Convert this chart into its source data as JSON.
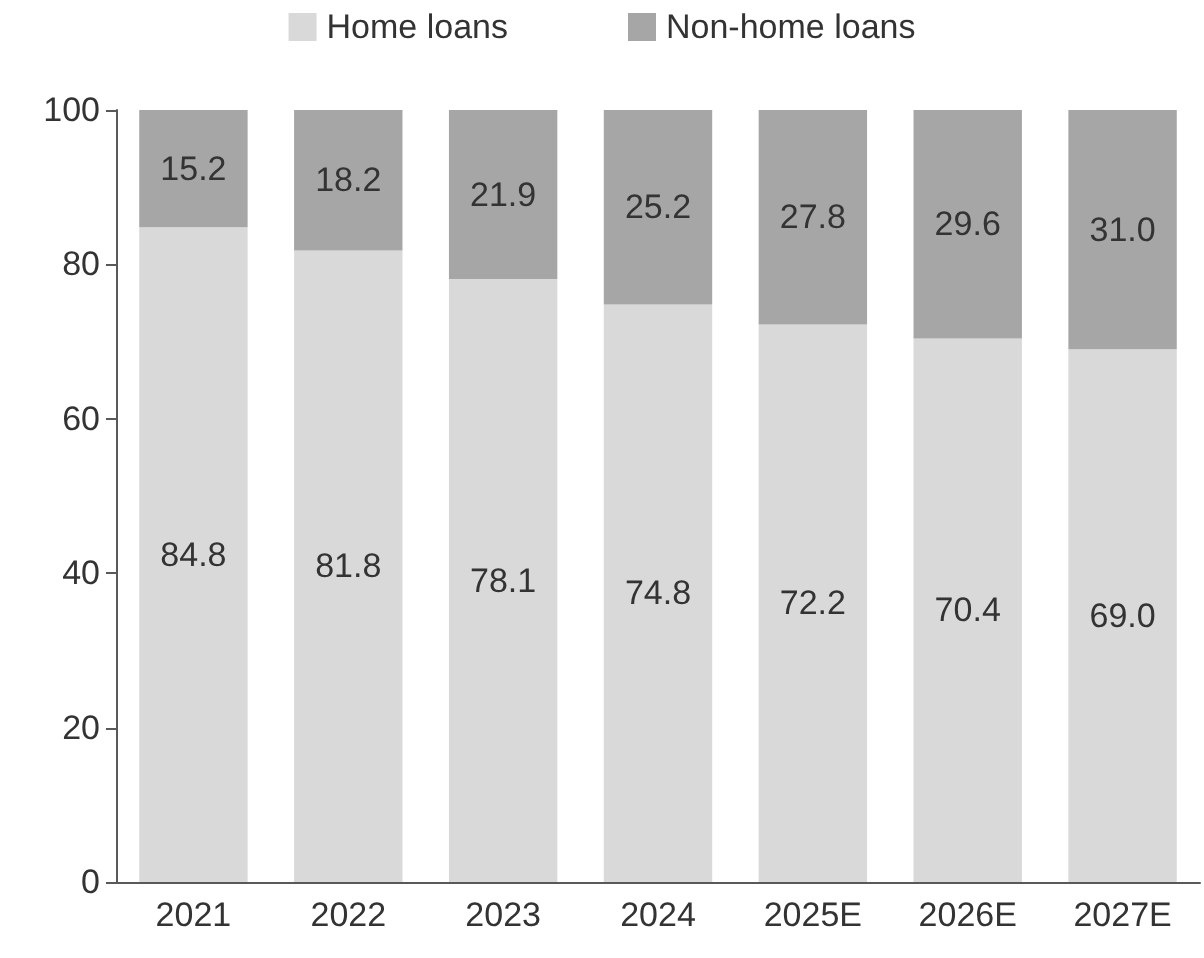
{
  "chart_data": {
    "type": "bar",
    "stacked": true,
    "categories": [
      "2021",
      "2022",
      "2023",
      "2024",
      "2025E",
      "2026E",
      "2027E"
    ],
    "series": [
      {
        "name": "Home loans",
        "color": "#d9d9d9",
        "values": [
          84.8,
          81.8,
          78.1,
          74.8,
          72.2,
          70.4,
          69.0
        ],
        "value_labels": [
          "84.8",
          "81.8",
          "78.1",
          "74.8",
          "72.2",
          "70.4",
          "69.0"
        ]
      },
      {
        "name": "Non-home loans",
        "color": "#a6a6a6",
        "values": [
          15.2,
          18.2,
          21.9,
          25.2,
          27.8,
          29.6,
          31.0
        ],
        "value_labels": [
          "15.2",
          "18.2",
          "21.9",
          "25.2",
          "27.8",
          "29.6",
          "31.0"
        ]
      }
    ],
    "ylim": [
      0,
      100
    ],
    "yticks": [
      0,
      20,
      40,
      60,
      80,
      100
    ],
    "grid": false,
    "legend": "top"
  }
}
